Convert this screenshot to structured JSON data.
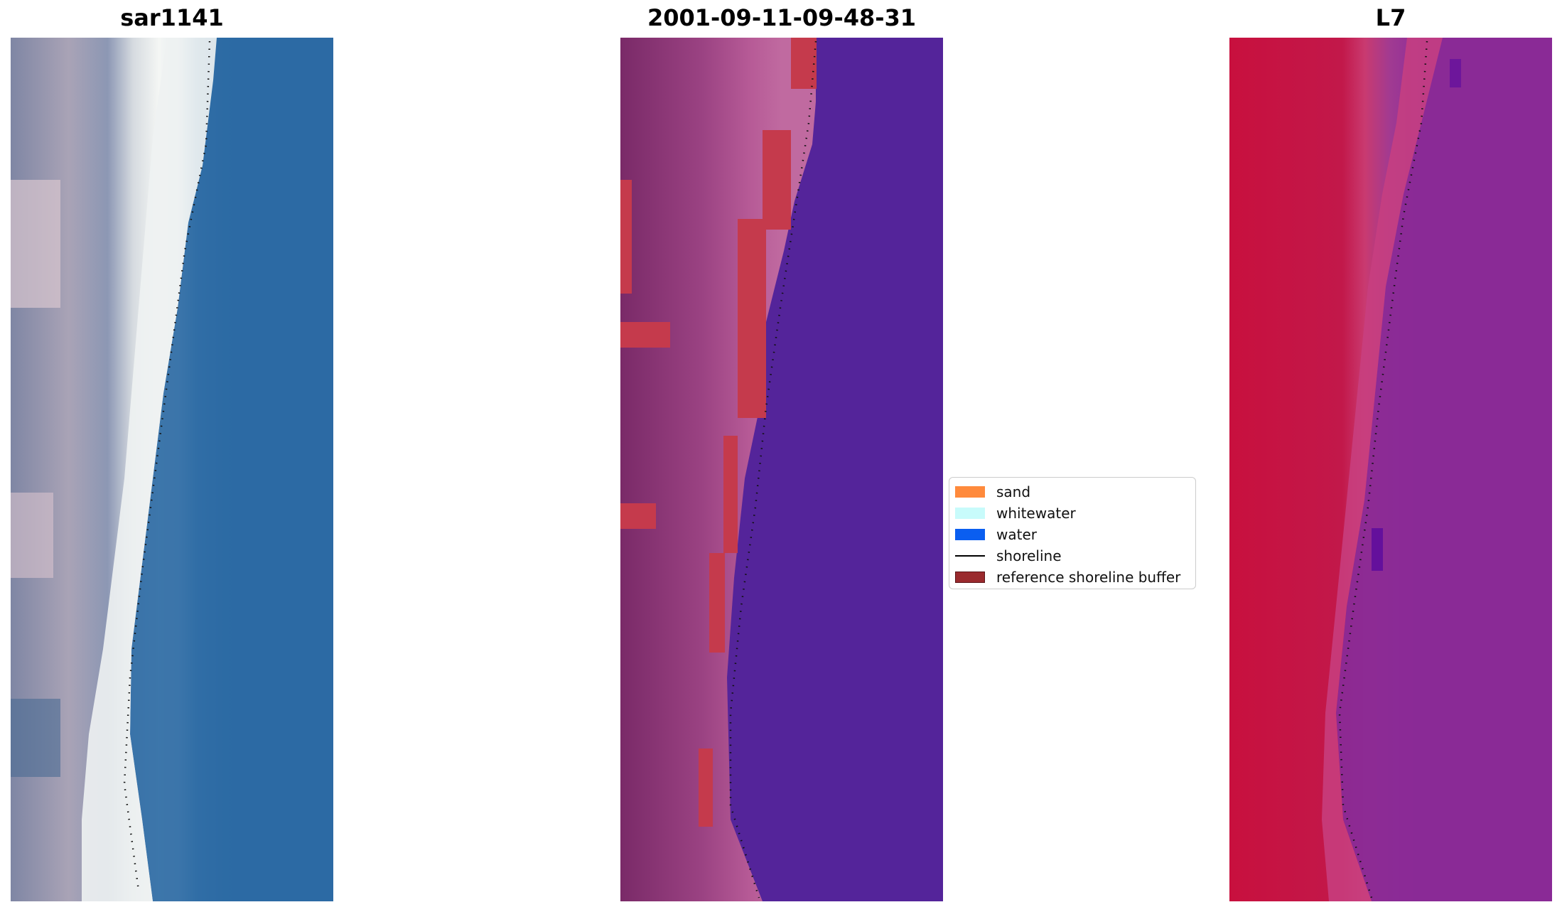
{
  "panels": {
    "left": {
      "title": "sar1141",
      "water_color": "#2a6aa4",
      "beach_color": "#e8ecee",
      "land_color": "#8a90a8"
    },
    "middle": {
      "title": "2001-09-11-09-48-31",
      "water_color": "#54249a",
      "land_color": "#8a3a78",
      "buffer_color": "#c2384a"
    },
    "right": {
      "title": "L7",
      "land_color": "#c4163e",
      "water_color": "#8a2a96"
    }
  },
  "legend": {
    "items": [
      {
        "label": "sand",
        "color": "#ff8a3c",
        "kind": "patch"
      },
      {
        "label": "whitewater",
        "color": "#c8fbfb",
        "kind": "patch"
      },
      {
        "label": "water",
        "color": "#0a5ef0",
        "kind": "patch"
      },
      {
        "label": "shoreline",
        "color": "#000000",
        "kind": "line"
      },
      {
        "label": "reference shoreline buffer",
        "color": "#9a2a2e",
        "kind": "patch"
      }
    ]
  }
}
